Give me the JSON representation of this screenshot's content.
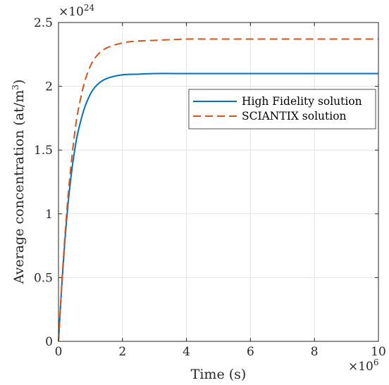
{
  "chart_data": {
    "type": "line",
    "xlabel": "Time (s)",
    "ylabel": "Average concentration (at/m",
    "ylabel_sup": "3",
    "ylabel_close": ")",
    "x_exponent_base": "×10",
    "x_exponent_power": "6",
    "y_exponent_base": "×10",
    "y_exponent_power": "24",
    "xlim": [
      0,
      10
    ],
    "ylim": [
      0,
      2.5
    ],
    "x_ticks": [
      0,
      2,
      4,
      6,
      8,
      10
    ],
    "x_tick_labels": [
      "0",
      "2",
      "4",
      "6",
      "8",
      "10"
    ],
    "y_ticks": [
      0,
      0.5,
      1,
      1.5,
      2,
      2.5
    ],
    "y_tick_labels": [
      "0",
      "0.5",
      "1",
      "1.5",
      "2",
      "2.5"
    ],
    "grid": true,
    "legend_position": "upper-right",
    "series": [
      {
        "name": "High Fidelity solution",
        "color": "#0072BD",
        "style": "solid",
        "x": [
          0,
          0.1,
          0.2,
          0.3,
          0.4,
          0.5,
          0.6,
          0.8,
          1.0,
          1.2,
          1.5,
          2.0,
          2.5,
          3.0,
          4.0,
          5.0,
          6.0,
          7.0,
          8.0,
          9.0,
          10.0
        ],
        "y": [
          0,
          0.43,
          0.79,
          1.08,
          1.31,
          1.49,
          1.63,
          1.82,
          1.94,
          2.01,
          2.06,
          2.09,
          2.095,
          2.1,
          2.1,
          2.1,
          2.1,
          2.1,
          2.1,
          2.1,
          2.1
        ]
      },
      {
        "name": "SCIANTIX solution",
        "color": "#D95319",
        "style": "dashed",
        "x": [
          0,
          0.1,
          0.2,
          0.3,
          0.4,
          0.5,
          0.6,
          0.8,
          1.0,
          1.2,
          1.5,
          2.0,
          2.5,
          3.0,
          4.0,
          5.0,
          6.0,
          7.0,
          8.0,
          9.0,
          10.0
        ],
        "y": [
          0,
          0.44,
          0.82,
          1.14,
          1.4,
          1.62,
          1.79,
          2.02,
          2.16,
          2.24,
          2.3,
          2.34,
          2.355,
          2.36,
          2.37,
          2.37,
          2.37,
          2.37,
          2.37,
          2.37,
          2.37
        ]
      }
    ]
  }
}
